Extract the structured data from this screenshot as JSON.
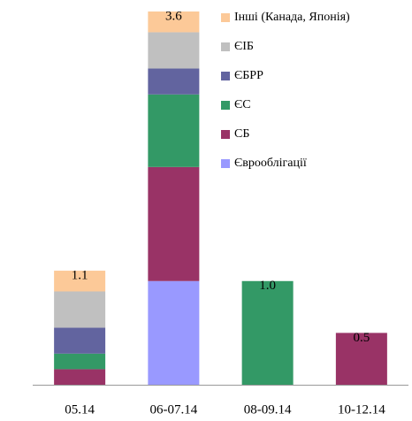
{
  "chart_data": {
    "type": "stacked_bar",
    "categories": [
      "05.14",
      "06-07.14",
      "08-09.14",
      "10-12.14"
    ],
    "series": [
      {
        "name": "Єврооблігації",
        "color": "#9999ff",
        "values": [
          null,
          1.0,
          null,
          null
        ]
      },
      {
        "name": "СБ",
        "color": "#993366",
        "values": [
          0.15,
          1.1,
          null,
          0.5
        ]
      },
      {
        "name": "ЄС",
        "color": "#339966",
        "values": [
          0.15,
          0.7,
          1.0,
          null
        ]
      },
      {
        "name": "ЄБРР",
        "color": "#62649f",
        "values": [
          0.25,
          0.25,
          null,
          null
        ]
      },
      {
        "name": "ЄІБ",
        "color": "#c0c0c0",
        "values": [
          0.35,
          0.35,
          null,
          null
        ]
      },
      {
        "name": "Інші (Канада, Японія)",
        "color": "#fcc998",
        "values": [
          0.2,
          0.2,
          null,
          null
        ]
      }
    ],
    "total_labels": [
      "1.1",
      "3.6",
      "1.0",
      "0.5"
    ],
    "legend": "upper right"
  }
}
